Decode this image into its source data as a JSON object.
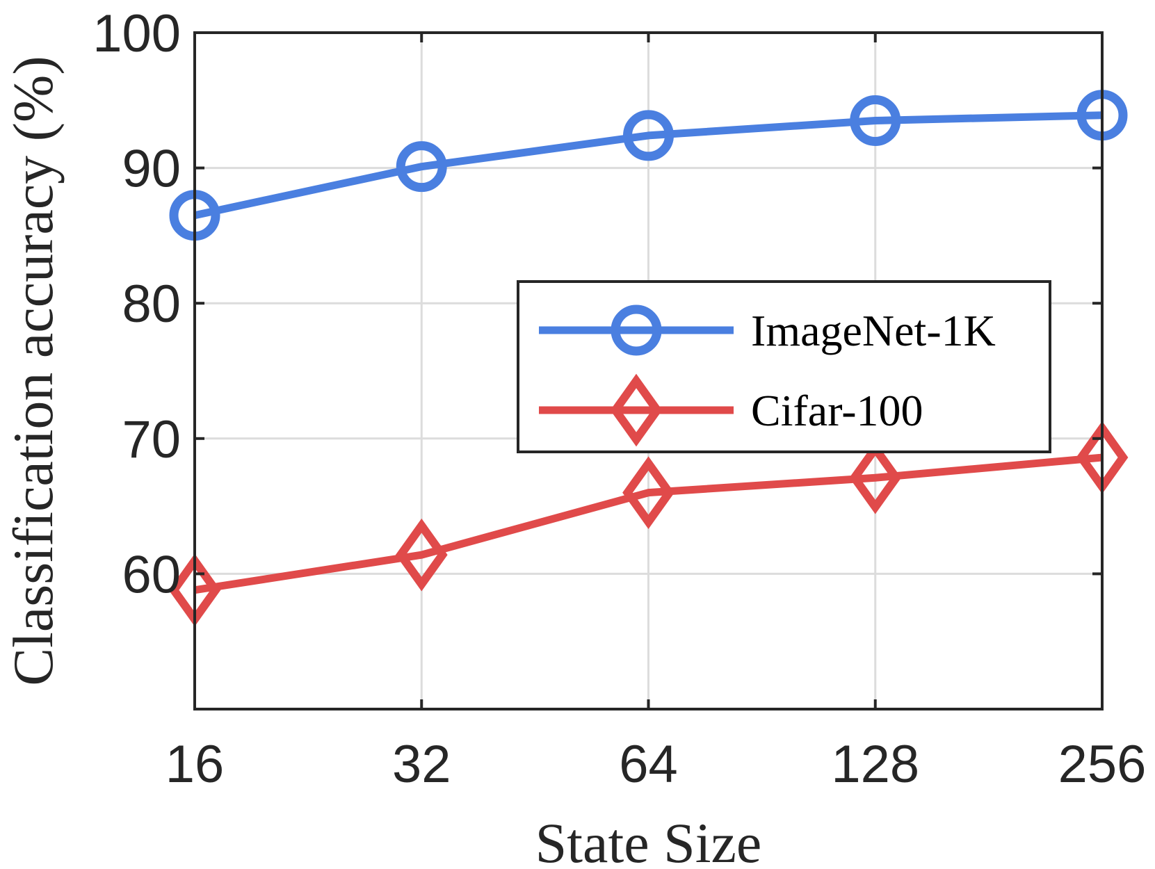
{
  "chart_data": {
    "type": "line",
    "x": [
      "16",
      "32",
      "64",
      "128",
      "256"
    ],
    "xlabel": "State Size",
    "ylabel": "Classification accuracy (%)",
    "ylim": [
      50,
      100
    ],
    "yticks": [
      "60",
      "70",
      "80",
      "90",
      "100"
    ],
    "grid": true,
    "legend_position": "right",
    "series": [
      {
        "name": "ImageNet-1K",
        "values": [
          86.5,
          90.1,
          92.4,
          93.5,
          93.9
        ],
        "color": "#4a7fe0",
        "marker": "circle"
      },
      {
        "name": "Cifar-100",
        "values": [
          58.8,
          61.4,
          66.0,
          67.1,
          68.6
        ],
        "color": "#e04a4a",
        "marker": "diamond"
      }
    ]
  }
}
